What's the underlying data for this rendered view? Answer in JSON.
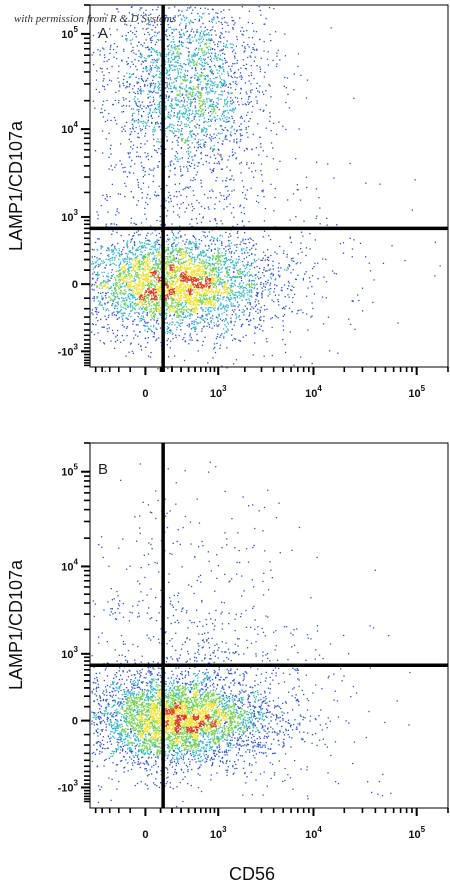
{
  "watermark": "with permission from R & D Systems",
  "colors": {
    "low": "#2a4fd6",
    "mid_low": "#29b6c8",
    "mid": "#6fd34a",
    "mid_high": "#f2e12b",
    "high": "#e23a1c",
    "gate_line": "#000000",
    "frame": "#000000"
  },
  "chart_data": [
    {
      "type": "scatter",
      "panel_label": "A",
      "xlabel": "",
      "ylabel": "LAMP1/CD107a",
      "x_scale": "biexponential",
      "y_scale": "biexponential",
      "x_ticks": [
        {
          "base": "0",
          "exp": ""
        },
        {
          "base": "10",
          "exp": "3"
        },
        {
          "base": "10",
          "exp": "4"
        },
        {
          "base": "10",
          "exp": "5"
        }
      ],
      "y_ticks": [
        {
          "base": "-10",
          "exp": "3"
        },
        {
          "base": "0",
          "exp": ""
        },
        {
          "base": "10",
          "exp": "3"
        },
        {
          "base": "10",
          "exp": "4"
        },
        {
          "base": "10",
          "exp": "5"
        }
      ],
      "x_tick_values": [
        0,
        1000,
        10000,
        100000
      ],
      "y_tick_values": [
        -1000,
        0,
        1000,
        10000,
        100000
      ],
      "xlim": [
        -600,
        200000
      ],
      "ylim": [
        -1800,
        200000
      ],
      "gate": {
        "x": 120,
        "y": 700
      },
      "clusters": [
        {
          "x_center": 300,
          "x_spread": 0.45,
          "y_center": 0,
          "y_spread": 0.25,
          "weight": 0.42
        },
        {
          "x_center": 30,
          "x_spread": 0.35,
          "y_center": 20,
          "y_spread": 0.25,
          "weight": 0.12
        },
        {
          "x_center": 350,
          "x_spread": 0.4,
          "y_center": 30000,
          "y_spread": 0.55,
          "weight": 0.36
        },
        {
          "x_center": 500,
          "x_spread": 0.8,
          "y_center": 200,
          "y_spread": 0.6,
          "weight": 0.1
        }
      ]
    },
    {
      "type": "scatter",
      "panel_label": "B",
      "xlabel": "CD56",
      "ylabel": "LAMP1/CD107a",
      "x_scale": "biexponential",
      "y_scale": "biexponential",
      "x_ticks": [
        {
          "base": "0",
          "exp": ""
        },
        {
          "base": "10",
          "exp": "3"
        },
        {
          "base": "10",
          "exp": "4"
        },
        {
          "base": "10",
          "exp": "5"
        }
      ],
      "y_ticks": [
        {
          "base": "-10",
          "exp": "3"
        },
        {
          "base": "0",
          "exp": ""
        },
        {
          "base": "10",
          "exp": "3"
        },
        {
          "base": "10",
          "exp": "4"
        },
        {
          "base": "10",
          "exp": "5"
        }
      ],
      "x_tick_values": [
        0,
        1000,
        10000,
        100000
      ],
      "y_tick_values": [
        -1000,
        0,
        1000,
        10000,
        100000
      ],
      "xlim": [
        -600,
        200000
      ],
      "ylim": [
        -1800,
        200000
      ],
      "gate": {
        "x": 120,
        "y": 700
      },
      "clusters": [
        {
          "x_center": 400,
          "x_spread": 0.4,
          "y_center": 10,
          "y_spread": 0.22,
          "weight": 0.55
        },
        {
          "x_center": 20,
          "x_spread": 0.35,
          "y_center": 10,
          "y_spread": 0.25,
          "weight": 0.25
        },
        {
          "x_center": 300,
          "x_spread": 0.55,
          "y_center": 3000,
          "y_spread": 0.7,
          "weight": 0.08
        },
        {
          "x_center": 800,
          "x_spread": 0.8,
          "y_center": 100,
          "y_spread": 0.5,
          "weight": 0.12
        }
      ]
    }
  ]
}
